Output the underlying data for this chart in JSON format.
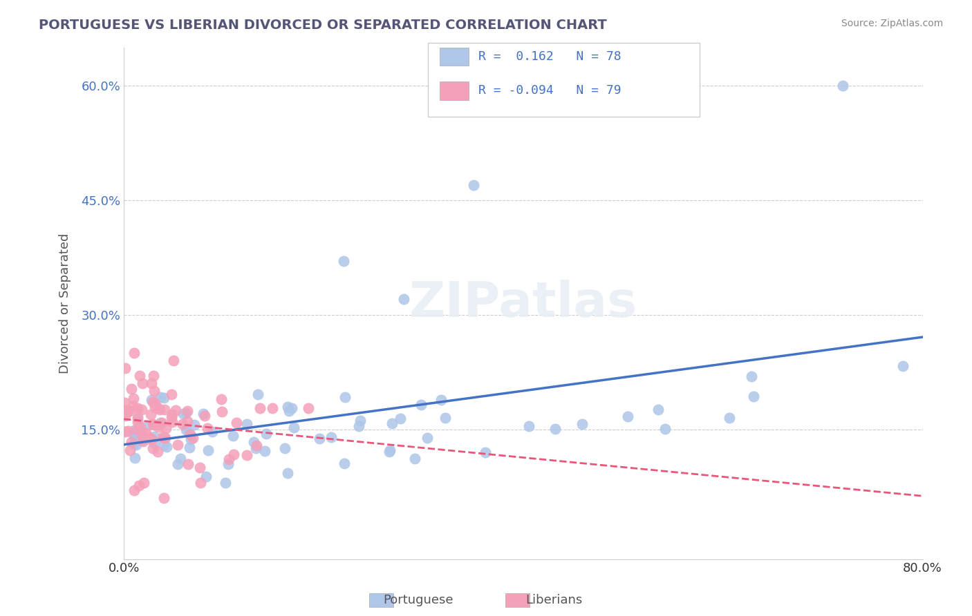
{
  "title": "PORTUGUESE VS LIBERIAN DIVORCED OR SEPARATED CORRELATION CHART",
  "source_text": "Source: ZipAtlas.com",
  "ylabel": "Divorced or Separated",
  "xlabel": "",
  "watermark": "ZIPatlas",
  "legend_entries": [
    {
      "label": "R =  0.162   N = 78",
      "color": "#aec6e8",
      "line_color": "#4472c4"
    },
    {
      "label": "R = -0.094   N = 79",
      "color": "#f4b8c8",
      "line_color": "#e8567a"
    }
  ],
  "xlim": [
    0.0,
    0.8
  ],
  "ylim": [
    -0.02,
    0.65
  ],
  "xticks": [
    0.0,
    0.1,
    0.2,
    0.3,
    0.4,
    0.5,
    0.6,
    0.7,
    0.8
  ],
  "xticklabels": [
    "0.0%",
    "",
    "",
    "",
    "",
    "",
    "",
    "",
    "80.0%"
  ],
  "ytick_positions": [
    0.15,
    0.3,
    0.45,
    0.6
  ],
  "yticklabels": [
    "15.0%",
    "30.0%",
    "45.0%",
    "60.0%"
  ],
  "grid_color": "#cccccc",
  "background_color": "#ffffff",
  "blue_scatter_color": "#aec6e8",
  "pink_scatter_color": "#f4a0b8",
  "blue_line_color": "#4472c4",
  "pink_line_color": "#e8567a",
  "blue_R": 0.162,
  "pink_R": -0.094,
  "portuguese_legend": "Portuguese",
  "liberian_legend": "Liberians",
  "seed": 42,
  "n_blue": 78,
  "n_pink": 79
}
